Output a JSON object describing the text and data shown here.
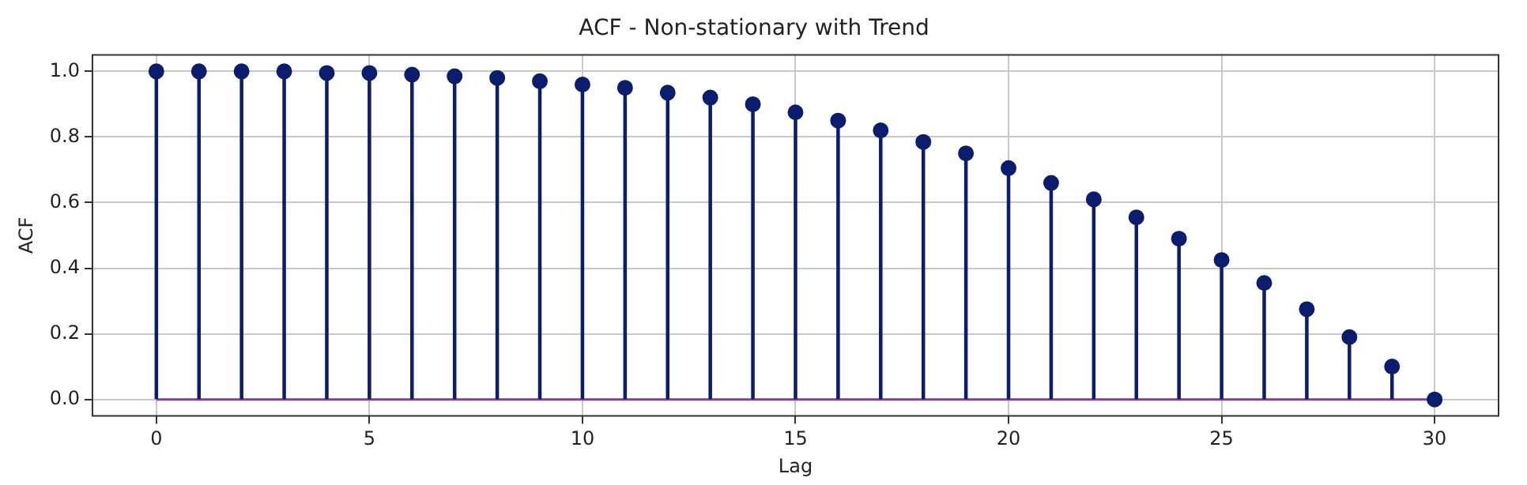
{
  "chart_data": {
    "type": "lollipop",
    "title": "ACF - Non-stationary with Trend",
    "xlabel": "Lag",
    "ylabel": "ACF",
    "x": [
      0,
      1,
      2,
      3,
      4,
      5,
      6,
      7,
      8,
      9,
      10,
      11,
      12,
      13,
      14,
      15,
      16,
      17,
      18,
      19,
      20,
      21,
      22,
      23,
      24,
      25,
      26,
      27,
      28,
      29,
      30
    ],
    "values": [
      1.0,
      1.0,
      1.0,
      1.0,
      0.995,
      0.995,
      0.99,
      0.985,
      0.98,
      0.97,
      0.96,
      0.95,
      0.935,
      0.92,
      0.9,
      0.875,
      0.85,
      0.82,
      0.785,
      0.75,
      0.705,
      0.66,
      0.61,
      0.555,
      0.49,
      0.425,
      0.355,
      0.275,
      0.19,
      0.1,
      0.0
    ],
    "color": "#0b1d6e",
    "marker": "circle",
    "xlim": [
      -1.5,
      31.5
    ],
    "xticks": [
      0,
      5,
      10,
      15,
      20,
      25,
      30
    ],
    "ylim": [
      -0.05,
      1.05
    ],
    "yticks": [
      {
        "value": 0,
        "label": "0.0"
      },
      {
        "value": 0.2,
        "label": "0.2"
      },
      {
        "value": 0.4,
        "label": "0.4"
      },
      {
        "value": 0.6,
        "label": "0.6"
      },
      {
        "value": 0.8,
        "label": "0.8"
      },
      {
        "value": 1,
        "label": "1.0"
      }
    ],
    "ref_lines": [
      {
        "axis": "y",
        "value": 0,
        "color": "#7b3f9e"
      }
    ],
    "grid": true,
    "legend": false
  }
}
